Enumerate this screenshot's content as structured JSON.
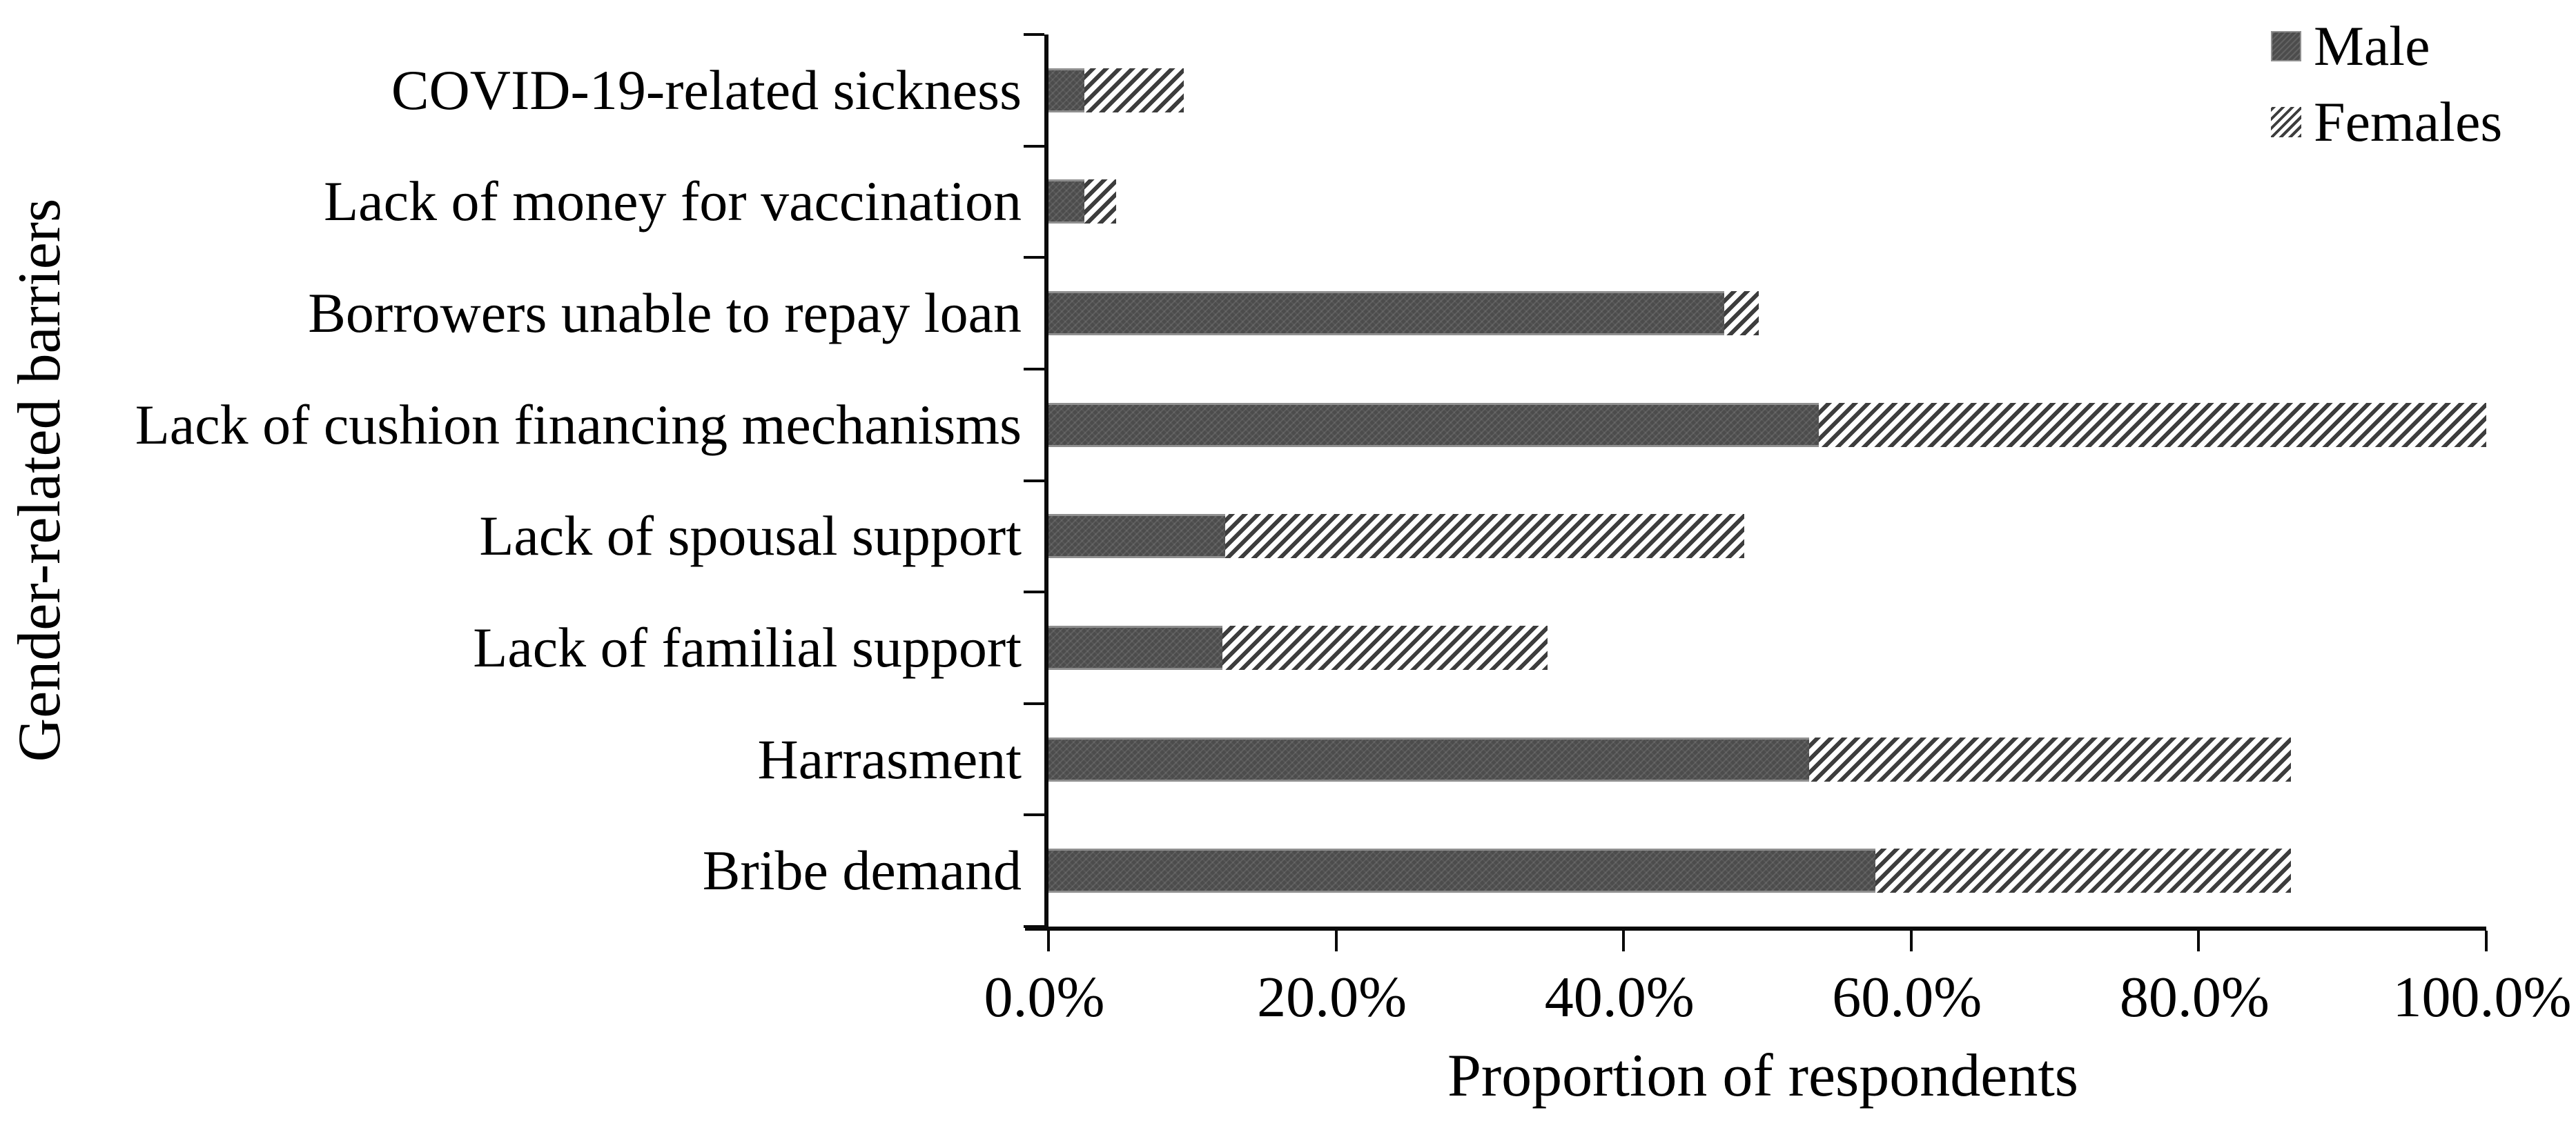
{
  "chart_data": {
    "type": "bar",
    "orientation": "horizontal-stacked",
    "title": "",
    "xlabel": "Proportion of respondents",
    "ylabel": "Gender-related barriers",
    "xlim": [
      0,
      100
    ],
    "x_tick_labels": [
      "0.0%",
      "20.0%",
      "40.0%",
      "60.0%",
      "80.0%",
      "100.0%"
    ],
    "grid": false,
    "legend_position": "top-right",
    "categories": [
      "COVID-19-related sickness",
      "Lack of money for vaccination",
      "Borrowers unable to repay loan",
      "Lack of cushion financing mechanisms",
      "Lack of spousal support",
      "Lack of familial support",
      "Harrasment",
      "Bribe demand"
    ],
    "series": [
      {
        "name": "Male",
        "style": "solid",
        "color": "#4c4c4c",
        "values": [
          2.5,
          2.5,
          47.0,
          53.6,
          12.3,
          12.1,
          52.9,
          57.5
        ]
      },
      {
        "name": "Females",
        "style": "diagonal-hatch",
        "color": "#3d3d3d",
        "values": [
          6.9,
          2.2,
          2.4,
          46.4,
          36.1,
          22.6,
          33.5,
          28.9
        ]
      }
    ],
    "units": "percent"
  }
}
